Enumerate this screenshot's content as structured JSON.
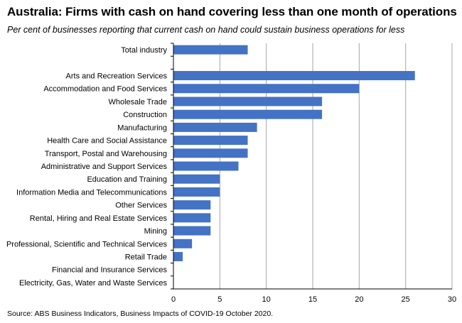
{
  "title": "Australia: Firms with cash on hand covering less than one month of operations",
  "subtitle": "Per cent of businesses reporting that current cash on hand could sustain business operations for less",
  "source": "Source: ABS Business Indicators, Business Impacts of COVID-19 October 2020.",
  "chart_data": {
    "type": "bar",
    "orientation": "horizontal",
    "categories": [
      "Total industry",
      "",
      "Arts and Recreation Services",
      "Accommodation and Food Services",
      "Wholesale Trade",
      "Construction",
      "Manufacturing",
      "Health Care and Social Assistance",
      "Transport, Postal and Warehousing",
      "Administrative and Support Services",
      "Education and Training",
      "Information Media and Telecommunications",
      "Other Services",
      "Rental, Hiring and Real Estate Services",
      "Mining",
      "Professional, Scientific and Technical Services",
      "Retail Trade",
      "Financial and Insurance Services",
      "Electricity, Gas, Water and Waste Services"
    ],
    "values": [
      8,
      null,
      26,
      20,
      16,
      16,
      9,
      8,
      8,
      7,
      5,
      5,
      4,
      4,
      4,
      2,
      1,
      0,
      0
    ],
    "xlim": [
      0,
      30
    ],
    "xticks": [
      0,
      5,
      10,
      15,
      20,
      25,
      30
    ],
    "grid": true,
    "bar_color": "#4472C4",
    "grid_color": "#a6a6a6"
  }
}
